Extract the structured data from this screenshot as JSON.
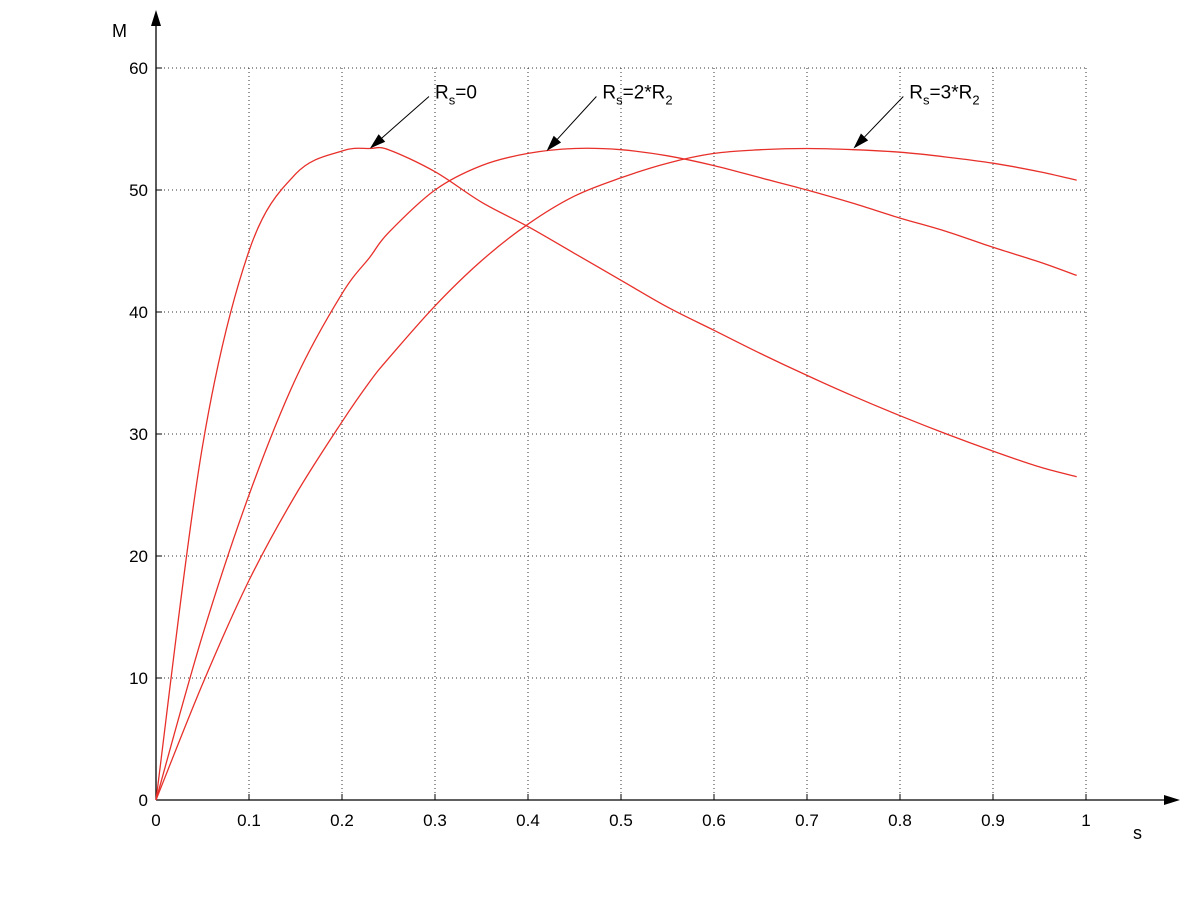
{
  "chart_data": {
    "type": "line",
    "xlabel": "s",
    "ylabel": "M",
    "xlim": [
      0,
      1
    ],
    "ylim": [
      0,
      60
    ],
    "x_ticks": [
      "0",
      "0.1",
      "0.2",
      "0.3",
      "0.4",
      "0.5",
      "0.6",
      "0.7",
      "0.8",
      "0.9",
      "1"
    ],
    "y_ticks": [
      "0",
      "10",
      "20",
      "30",
      "40",
      "50",
      "60"
    ],
    "grid": true,
    "line_color": "#e8302a",
    "x": [
      0,
      0.05,
      0.1,
      0.15,
      0.2,
      0.23,
      0.25,
      0.3,
      0.35,
      0.4,
      0.45,
      0.5,
      0.55,
      0.6,
      0.65,
      0.7,
      0.75,
      0.8,
      0.85,
      0.9,
      0.95,
      0.99
    ],
    "series": [
      {
        "label": "Rs=0",
        "values": [
          0,
          29.0,
          45.0,
          51.3,
          53.2,
          53.4,
          53.3,
          51.5,
          49.0,
          47.0,
          44.8,
          42.6,
          40.4,
          38.5,
          36.6,
          34.8,
          33.1,
          31.5,
          30.0,
          28.6,
          27.3,
          26.5
        ]
      },
      {
        "label": "Rs=2*R2",
        "values": [
          0,
          13.5,
          25.0,
          34.5,
          41.5,
          44.5,
          46.5,
          50.0,
          52.0,
          53.0,
          53.4,
          53.3,
          52.8,
          52.0,
          51.0,
          50.0,
          48.9,
          47.7,
          46.6,
          45.3,
          44.1,
          43.0
        ]
      },
      {
        "label": "Rs=3*R2",
        "values": [
          0,
          9.5,
          18.0,
          25.0,
          31.0,
          34.3,
          36.2,
          40.5,
          44.2,
          47.2,
          49.5,
          51.0,
          52.2,
          53.0,
          53.3,
          53.4,
          53.3,
          53.1,
          52.7,
          52.2,
          51.5,
          50.8
        ]
      }
    ],
    "annotations": [
      {
        "text": "R",
        "sub": "s",
        "tail": "=0",
        "target_x": 0.23,
        "target_y": 53.4,
        "text_x": 0.3,
        "text_y": 57.5
      },
      {
        "text": "R",
        "sub": "s",
        "tail": "=2*R",
        "sub2": "2",
        "target_x": 0.42,
        "target_y": 53.2,
        "text_x": 0.48,
        "text_y": 57.5
      },
      {
        "text": "R",
        "sub": "s",
        "tail": "=3*R",
        "sub2": "2",
        "target_x": 0.75,
        "target_y": 53.4,
        "text_x": 0.81,
        "text_y": 57.5
      }
    ]
  }
}
